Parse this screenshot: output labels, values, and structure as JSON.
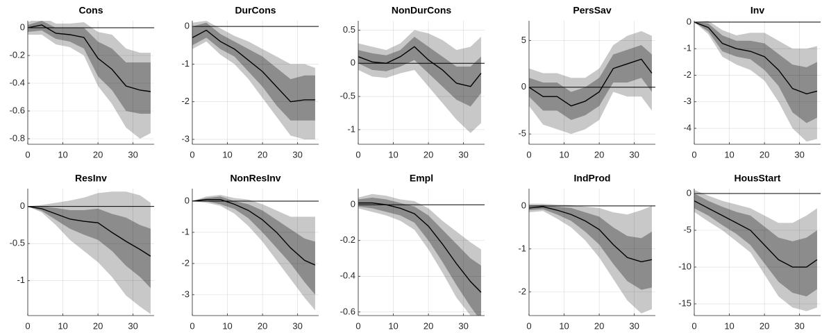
{
  "chart_data": [
    {
      "type": "line",
      "title": "Cons",
      "x": [
        0,
        4,
        8,
        12,
        16,
        20,
        24,
        28,
        32,
        35
      ],
      "xlim": [
        0,
        36
      ],
      "xticks": [
        0,
        10,
        20,
        30
      ],
      "ylim": [
        -0.84,
        0.05
      ],
      "yticks": [
        0,
        -0.2,
        -0.4,
        -0.6,
        -0.8
      ],
      "grid": true,
      "bands": [
        {
          "color": "#c8c8c8",
          "lower": [
            -0.05,
            -0.05,
            -0.12,
            -0.14,
            -0.2,
            -0.42,
            -0.55,
            -0.72,
            -0.8,
            -0.76
          ],
          "upper": [
            0.04,
            0.08,
            0.03,
            0.03,
            0.04,
            -0.03,
            -0.05,
            -0.15,
            -0.18,
            -0.18
          ]
        },
        {
          "color": "#8c8c8c",
          "lower": [
            -0.03,
            -0.02,
            -0.08,
            -0.1,
            -0.15,
            -0.35,
            -0.45,
            -0.6,
            -0.62,
            -0.62
          ],
          "upper": [
            0.02,
            0.05,
            0,
            0,
            0,
            -0.1,
            -0.15,
            -0.25,
            -0.25,
            -0.25
          ]
        }
      ],
      "series": [
        {
          "color": "#000000",
          "values": [
            0,
            0.02,
            -0.04,
            -0.05,
            -0.07,
            -0.22,
            -0.3,
            -0.42,
            -0.45,
            -0.46
          ]
        }
      ]
    },
    {
      "type": "line",
      "title": "DurCons",
      "x": [
        0,
        4,
        8,
        12,
        16,
        20,
        24,
        28,
        32,
        35
      ],
      "xlim": [
        0,
        36
      ],
      "xticks": [
        0,
        10,
        20,
        30
      ],
      "ylim": [
        -3.13,
        0.15
      ],
      "yticks": [
        0,
        -1,
        -2,
        -3
      ],
      "grid": true,
      "bands": [
        {
          "color": "#c8c8c8",
          "lower": [
            -0.6,
            -0.4,
            -0.75,
            -1.0,
            -1.4,
            -1.9,
            -2.4,
            -2.9,
            -3.0,
            -3.0
          ],
          "upper": [
            0.1,
            0.15,
            -0.05,
            -0.25,
            -0.4,
            -0.6,
            -0.8,
            -1.0,
            -1.0,
            -1.1
          ]
        },
        {
          "color": "#8c8c8c",
          "lower": [
            -0.5,
            -0.3,
            -0.6,
            -0.8,
            -1.2,
            -1.6,
            -2.1,
            -2.5,
            -2.5,
            -2.5
          ],
          "upper": [
            0,
            0.1,
            -0.2,
            -0.4,
            -0.6,
            -0.8,
            -1.1,
            -1.4,
            -1.3,
            -1.3
          ]
        }
      ],
      "series": [
        {
          "color": "#000000",
          "values": [
            -0.3,
            -0.1,
            -0.4,
            -0.6,
            -0.9,
            -1.2,
            -1.6,
            -2.0,
            -1.95,
            -1.95
          ]
        }
      ]
    },
    {
      "type": "line",
      "title": "NonDurCons",
      "x": [
        0,
        4,
        8,
        12,
        16,
        20,
        24,
        28,
        32,
        35
      ],
      "xlim": [
        0,
        36
      ],
      "xticks": [
        0,
        10,
        20,
        30
      ],
      "ylim": [
        -1.22,
        0.64
      ],
      "yticks": [
        0.5,
        0,
        -0.5,
        -1
      ],
      "grid": true,
      "bands": [
        {
          "color": "#c8c8c8",
          "lower": [
            -0.1,
            -0.2,
            -0.22,
            -0.15,
            -0.1,
            -0.35,
            -0.6,
            -0.85,
            -1.05,
            -0.9
          ],
          "upper": [
            0.3,
            0.25,
            0.2,
            0.3,
            0.5,
            0.45,
            0.35,
            0.2,
            0.25,
            0.4
          ]
        },
        {
          "color": "#8c8c8c",
          "lower": [
            0,
            -0.1,
            -0.12,
            -0.05,
            0.05,
            -0.15,
            -0.35,
            -0.55,
            -0.65,
            -0.45
          ],
          "upper": [
            0.2,
            0.15,
            0.12,
            0.2,
            0.4,
            0.25,
            0.1,
            -0.05,
            -0.05,
            0.1
          ]
        }
      ],
      "series": [
        {
          "color": "#000000",
          "values": [
            0.1,
            0.02,
            0,
            0.1,
            0.25,
            0.05,
            -0.1,
            -0.3,
            -0.35,
            -0.15
          ]
        }
      ]
    },
    {
      "type": "line",
      "title": "PersSav",
      "x": [
        0,
        4,
        8,
        12,
        16,
        20,
        24,
        28,
        32,
        35
      ],
      "xlim": [
        0,
        36
      ],
      "xticks": [
        0,
        10,
        20,
        30
      ],
      "ylim": [
        -6.1,
        7.1
      ],
      "yticks": [
        5,
        0,
        -5
      ],
      "grid": true,
      "bands": [
        {
          "color": "#c8c8c8",
          "lower": [
            -2,
            -4,
            -4.5,
            -5,
            -4.5,
            -3.5,
            -0.5,
            -1,
            -1,
            -2.5
          ],
          "upper": [
            2,
            1.5,
            1.5,
            1,
            1,
            2,
            4.5,
            5.5,
            6,
            5.5
          ]
        },
        {
          "color": "#8c8c8c",
          "lower": [
            -1,
            -2.5,
            -2.5,
            -3.5,
            -3,
            -2,
            0.5,
            0.5,
            1,
            -0.5
          ],
          "upper": [
            1,
            0.5,
            0.5,
            -0.5,
            0,
            1,
            3.5,
            4,
            4.5,
            3.5
          ]
        }
      ],
      "series": [
        {
          "color": "#000000",
          "values": [
            0,
            -1,
            -1,
            -2,
            -1.5,
            -0.5,
            2,
            2.5,
            3,
            1.5
          ]
        }
      ]
    },
    {
      "type": "line",
      "title": "Inv",
      "x": [
        0,
        4,
        8,
        12,
        16,
        20,
        24,
        28,
        32,
        35
      ],
      "xlim": [
        0,
        36
      ],
      "xticks": [
        0,
        10,
        20,
        30
      ],
      "ylim": [
        -4.6,
        0.05
      ],
      "yticks": [
        0,
        -1,
        -2,
        -3,
        -4
      ],
      "grid": true,
      "bands": [
        {
          "color": "#c8c8c8",
          "lower": [
            0,
            -0.45,
            -1.3,
            -1.6,
            -1.8,
            -2.2,
            -3,
            -4,
            -4.5,
            -4.4
          ],
          "upper": [
            0,
            0.05,
            -0.3,
            -0.5,
            -0.4,
            -0.4,
            -0.7,
            -1.0,
            -1.0,
            -0.9
          ]
        },
        {
          "color": "#8c8c8c",
          "lower": [
            0,
            -0.35,
            -1.1,
            -1.3,
            -1.4,
            -1.8,
            -2.4,
            -3.4,
            -3.8,
            -3.6
          ],
          "upper": [
            0,
            -0.05,
            -0.5,
            -0.7,
            -0.7,
            -0.8,
            -1.2,
            -1.6,
            -1.7,
            -1.5
          ]
        }
      ],
      "series": [
        {
          "color": "#000000",
          "values": [
            0,
            -0.2,
            -0.8,
            -1,
            -1.1,
            -1.3,
            -1.8,
            -2.5,
            -2.7,
            -2.6
          ]
        }
      ]
    },
    {
      "type": "line",
      "title": "ResInv",
      "x": [
        0,
        4,
        8,
        12,
        16,
        20,
        24,
        28,
        32,
        35
      ],
      "xlim": [
        0,
        36
      ],
      "xticks": [
        0,
        10,
        20,
        30
      ],
      "ylim": [
        -1.47,
        0.24
      ],
      "yticks": [
        0,
        -0.5,
        -1
      ],
      "grid": true,
      "bands": [
        {
          "color": "#c8c8c8",
          "lower": [
            0,
            -0.08,
            -0.25,
            -0.45,
            -0.6,
            -0.75,
            -0.95,
            -1.2,
            -1.35,
            -1.45
          ],
          "upper": [
            0,
            0.02,
            0.05,
            0.08,
            0.12,
            0.18,
            0.2,
            0.2,
            0.15,
            0.05
          ]
        },
        {
          "color": "#8c8c8c",
          "lower": [
            0,
            -0.06,
            -0.18,
            -0.3,
            -0.38,
            -0.45,
            -0.6,
            -0.8,
            -0.95,
            -1.1
          ],
          "upper": [
            0,
            0,
            -0.02,
            -0.05,
            -0.05,
            -0.03,
            -0.1,
            -0.15,
            -0.25,
            -0.3
          ]
        }
      ],
      "series": [
        {
          "color": "#000000",
          "values": [
            0,
            -0.03,
            -0.1,
            -0.17,
            -0.2,
            -0.22,
            -0.35,
            -0.47,
            -0.58,
            -0.67
          ]
        }
      ]
    },
    {
      "type": "line",
      "title": "NonResInv",
      "x": [
        0,
        4,
        8,
        12,
        16,
        20,
        24,
        28,
        32,
        35
      ],
      "xlim": [
        0,
        36
      ],
      "xticks": [
        0,
        10,
        20,
        30
      ],
      "ylim": [
        -3.67,
        0.4
      ],
      "yticks": [
        0,
        -1,
        -2,
        -3
      ],
      "grid": true,
      "bands": [
        {
          "color": "#c8c8c8",
          "lower": [
            0,
            -0.05,
            -0.15,
            -0.4,
            -0.8,
            -1.3,
            -1.9,
            -2.5,
            -3.1,
            -3.5
          ],
          "upper": [
            0,
            0.15,
            0.2,
            0.1,
            0.05,
            -0.1,
            -0.3,
            -0.5,
            -0.5,
            -0.5
          ]
        },
        {
          "color": "#8c8c8c",
          "lower": [
            0,
            0,
            -0.1,
            -0.25,
            -0.55,
            -1.0,
            -1.5,
            -2.0,
            -2.6,
            -3.0
          ],
          "upper": [
            0,
            0.1,
            0.15,
            0,
            -0.1,
            -0.3,
            -0.6,
            -0.9,
            -1.2,
            -1.3
          ]
        }
      ],
      "series": [
        {
          "color": "#000000",
          "values": [
            0,
            0.05,
            0.05,
            -0.1,
            -0.3,
            -0.6,
            -1.0,
            -1.5,
            -1.9,
            -2.05
          ]
        }
      ]
    },
    {
      "type": "line",
      "title": "Empl",
      "x": [
        0,
        4,
        8,
        12,
        16,
        20,
        24,
        28,
        32,
        35
      ],
      "xlim": [
        0,
        36
      ],
      "xticks": [
        0,
        10,
        20,
        30
      ],
      "ylim": [
        -0.62,
        0.09
      ],
      "yticks": [
        0,
        -0.2,
        -0.4,
        -0.6
      ],
      "grid": true,
      "bands": [
        {
          "color": "#c8c8c8",
          "lower": [
            -0.02,
            -0.04,
            -0.06,
            -0.09,
            -0.14,
            -0.25,
            -0.38,
            -0.52,
            -0.62,
            -0.62
          ],
          "upper": [
            0.04,
            0.06,
            0.05,
            0.03,
            0.02,
            -0.02,
            -0.09,
            -0.15,
            -0.21,
            -0.25
          ]
        },
        {
          "color": "#8c8c8c",
          "lower": [
            -0.01,
            -0.02,
            -0.04,
            -0.06,
            -0.1,
            -0.2,
            -0.32,
            -0.45,
            -0.57,
            -0.65
          ],
          "upper": [
            0.03,
            0.04,
            0.03,
            0.01,
            -0.01,
            -0.06,
            -0.14,
            -0.22,
            -0.3,
            -0.34
          ]
        }
      ],
      "series": [
        {
          "color": "#000000",
          "values": [
            0.01,
            0.01,
            0,
            -0.02,
            -0.05,
            -0.12,
            -0.22,
            -0.33,
            -0.43,
            -0.49
          ]
        }
      ]
    },
    {
      "type": "line",
      "title": "IndProd",
      "x": [
        0,
        4,
        8,
        12,
        16,
        20,
        24,
        28,
        32,
        35
      ],
      "xlim": [
        0,
        36
      ],
      "xticks": [
        0,
        10,
        20,
        30
      ],
      "ylim": [
        -2.55,
        0.4
      ],
      "yticks": [
        0,
        -1,
        -2
      ],
      "grid": true,
      "bands": [
        {
          "color": "#c8c8c8",
          "lower": [
            -0.15,
            -0.12,
            -0.3,
            -0.5,
            -0.8,
            -1.2,
            -1.7,
            -2.2,
            -2.5,
            -2.4
          ],
          "upper": [
            0.05,
            0.05,
            0.03,
            0.02,
            -0.02,
            -0.05,
            -0.15,
            -0.2,
            -0.1,
            0
          ]
        },
        {
          "color": "#8c8c8c",
          "lower": [
            -0.1,
            -0.08,
            -0.2,
            -0.35,
            -0.6,
            -0.9,
            -1.35,
            -1.75,
            -1.95,
            -1.9
          ],
          "upper": [
            0,
            0.02,
            -0.02,
            -0.05,
            -0.15,
            -0.25,
            -0.5,
            -0.7,
            -0.75,
            -0.6
          ]
        }
      ],
      "series": [
        {
          "color": "#000000",
          "values": [
            -0.05,
            -0.02,
            -0.1,
            -0.2,
            -0.35,
            -0.55,
            -0.9,
            -1.2,
            -1.3,
            -1.25
          ]
        }
      ]
    },
    {
      "type": "line",
      "title": "HousStart",
      "x": [
        0,
        4,
        8,
        12,
        16,
        20,
        24,
        28,
        32,
        35
      ],
      "xlim": [
        0,
        36
      ],
      "xticks": [
        0,
        10,
        20,
        30
      ],
      "ylim": [
        -16.6,
        0.66
      ],
      "yticks": [
        0,
        -5,
        -10,
        -15
      ],
      "grid": true,
      "bands": [
        {
          "color": "#c8c8c8",
          "lower": [
            -2.5,
            -3.8,
            -5,
            -6.5,
            -8,
            -11,
            -14,
            -15.5,
            -16,
            -15.5
          ],
          "upper": [
            0.5,
            -0.3,
            -1,
            -1.5,
            -2,
            -3,
            -4,
            -4,
            -3,
            -2
          ]
        },
        {
          "color": "#8c8c8c",
          "lower": [
            -2,
            -3,
            -4.3,
            -5.5,
            -7,
            -9.5,
            -12,
            -13.5,
            -14,
            -13
          ],
          "upper": [
            0,
            -1,
            -1.8,
            -2.5,
            -3,
            -4.5,
            -6,
            -6.5,
            -6,
            -5
          ]
        }
      ],
      "series": [
        {
          "color": "#000000",
          "values": [
            -1,
            -2,
            -3,
            -4,
            -5,
            -7,
            -9,
            -10,
            -10,
            -9
          ]
        }
      ]
    }
  ]
}
